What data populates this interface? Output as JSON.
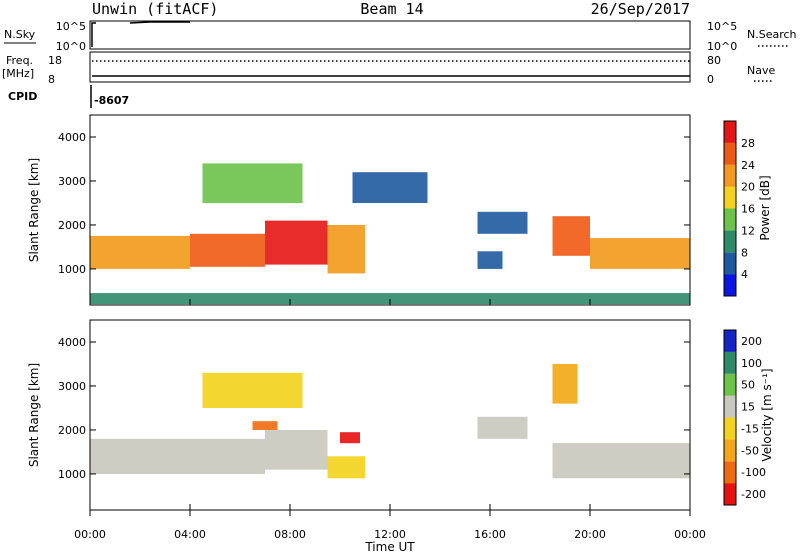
{
  "header": {
    "site": "Unwin (fitACF)",
    "beam": "Beam 14",
    "date": "26/Sep/2017"
  },
  "top_panels": {
    "nsky_label": "N.Sky",
    "nsky_ticks": [
      "10^5",
      "10^0"
    ],
    "nsearch_label": "N.Search",
    "freq_label_line1": "Freq.",
    "freq_label_line2": "[MHz]",
    "freq_ticks": [
      "18",
      "8"
    ],
    "nave_label": "Nave",
    "nave_ticks": [
      "80",
      "0"
    ],
    "cpid_label": "CPID",
    "cpid_value": "-8607"
  },
  "colors": {
    "power": [
      "#0a14e6",
      "#1e5a9e",
      "#2f8a6a",
      "#6cc24a",
      "#f2d21a",
      "#f29a1a",
      "#ef5a12",
      "#e61414"
    ],
    "velocity": [
      "#e81010",
      "#f06a10",
      "#f2a814",
      "#f2d21a",
      "#c8c8bc",
      "#6cc24a",
      "#2f8a6a",
      "#1424c8"
    ],
    "ground_scatter": "#c0c0b6"
  },
  "chart_data": [
    {
      "type": "heatmap",
      "name": "power",
      "xlabel": "",
      "ylabel": "Slant Range [km]",
      "xlim": [
        "00:00",
        "24:00"
      ],
      "ylim": [
        180,
        4500
      ],
      "y_ticks": [
        "1000",
        "2000",
        "3000",
        "4000"
      ],
      "x_ticks": [
        "00:00",
        "04:00",
        "08:00",
        "12:00",
        "16:00",
        "20:00",
        "00:00"
      ],
      "colorbar": {
        "label": "Power [dB]",
        "ticks": [
          "4",
          "8",
          "12",
          "16",
          "20",
          "24",
          "28"
        ],
        "range": [
          0,
          30
        ]
      },
      "regions": [
        {
          "start_hr": 0.0,
          "end_hr": 4.0,
          "range_km": [
            1000,
            1750
          ],
          "value": 20
        },
        {
          "start_hr": 4.0,
          "end_hr": 7.0,
          "range_km": [
            1050,
            1800
          ],
          "value": 23
        },
        {
          "start_hr": 7.0,
          "end_hr": 9.5,
          "range_km": [
            1100,
            2100
          ],
          "value": 27
        },
        {
          "start_hr": 9.5,
          "end_hr": 11.0,
          "range_km": [
            900,
            2000
          ],
          "value": 22
        },
        {
          "start_hr": 4.5,
          "end_hr": 8.5,
          "range_km": [
            2500,
            3400
          ],
          "value": 12
        },
        {
          "start_hr": 10.5,
          "end_hr": 13.5,
          "range_km": [
            2500,
            3200
          ],
          "value": 6
        },
        {
          "start_hr": 15.5,
          "end_hr": 17.5,
          "range_km": [
            1800,
            2300
          ],
          "value": 5
        },
        {
          "start_hr": 15.5,
          "end_hr": 16.5,
          "range_km": [
            1000,
            1400
          ],
          "value": 5
        },
        {
          "start_hr": 18.5,
          "end_hr": 20.0,
          "range_km": [
            1300,
            2200
          ],
          "value": 24
        },
        {
          "start_hr": 20.0,
          "end_hr": 24.0,
          "range_km": [
            1000,
            1700
          ],
          "value": 22
        },
        {
          "start_hr": 0.0,
          "end_hr": 24.0,
          "range_km": [
            200,
            450
          ],
          "value": 8
        }
      ]
    },
    {
      "type": "heatmap",
      "name": "velocity",
      "xlabel": "Time UT",
      "ylabel": "Slant Range [km]",
      "xlim": [
        "00:00",
        "24:00"
      ],
      "ylim": [
        180,
        4500
      ],
      "y_ticks": [
        "1000",
        "2000",
        "3000",
        "4000"
      ],
      "x_ticks": [
        "00:00",
        "04:00",
        "08:00",
        "12:00",
        "16:00",
        "20:00",
        "00:00"
      ],
      "colorbar": {
        "label": "Velocity [m s⁻¹]",
        "ticks": [
          "200",
          "100",
          "50",
          "15",
          "-15",
          "-50",
          "-100",
          "-200"
        ],
        "range": [
          -250,
          250
        ]
      },
      "regions": [
        {
          "start_hr": 0.0,
          "end_hr": 7.0,
          "range_km": [
            1000,
            1800
          ],
          "value": 0
        },
        {
          "start_hr": 7.0,
          "end_hr": 9.5,
          "range_km": [
            1100,
            2000
          ],
          "value": 0
        },
        {
          "start_hr": 9.5,
          "end_hr": 11.0,
          "range_km": [
            900,
            1400
          ],
          "value": -60
        },
        {
          "start_hr": 6.5,
          "end_hr": 7.5,
          "range_km": [
            2000,
            2200
          ],
          "value": -180
        },
        {
          "start_hr": 10.0,
          "end_hr": 10.8,
          "range_km": [
            1700,
            1950
          ],
          "value": -200
        },
        {
          "start_hr": 4.5,
          "end_hr": 8.5,
          "range_km": [
            2500,
            3300
          ],
          "value": -40
        },
        {
          "start_hr": 15.5,
          "end_hr": 17.5,
          "range_km": [
            1800,
            2300
          ],
          "value": 0
        },
        {
          "start_hr": 18.5,
          "end_hr": 24.0,
          "range_km": [
            900,
            1700
          ],
          "value": 0
        },
        {
          "start_hr": 18.5,
          "end_hr": 19.5,
          "range_km": [
            2600,
            3500
          ],
          "value": -90
        }
      ]
    }
  ]
}
